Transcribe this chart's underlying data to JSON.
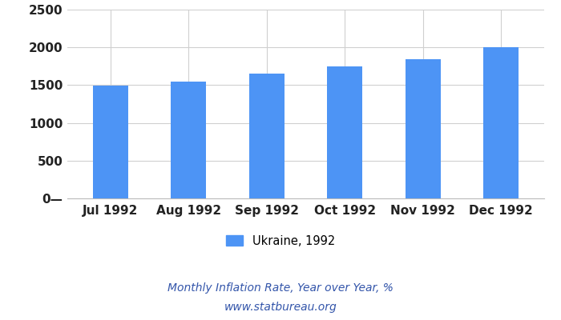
{
  "categories": [
    "Jul 1992",
    "Aug 1992",
    "Sep 1992",
    "Oct 1992",
    "Nov 1992",
    "Dec 1992"
  ],
  "values": [
    1490,
    1550,
    1650,
    1750,
    1840,
    2000
  ],
  "bar_color": "#4d94f5",
  "ylim": [
    0,
    2500
  ],
  "yticks": [
    0,
    500,
    1000,
    1500,
    2000,
    2500
  ],
  "title": "Monthly Inflation Rate, Year over Year, %",
  "subtitle": "www.statbureau.org",
  "legend_label": "Ukraine, 1992",
  "background_color": "#ffffff",
  "grid_color": "#d0d0d0",
  "title_color": "#3355aa",
  "tick_color": "#222222",
  "title_fontsize": 10,
  "tick_fontsize": 11,
  "bar_width": 0.45
}
